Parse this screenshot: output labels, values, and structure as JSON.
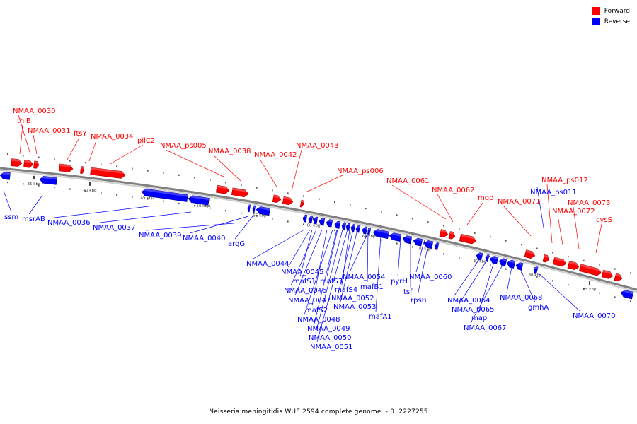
{
  "legend": {
    "forward_label": "Forward",
    "reverse_label": "Reverse",
    "forward_color": "#ff0000",
    "reverse_color": "#0000ff"
  },
  "caption": "Neisseria meningitidis WUE 2594 complete genome. - 0..2227255",
  "backbone_color": "#808080",
  "ticks": [
    {
      "pos_kbp": 35,
      "label": "35 kbp"
    },
    {
      "pos_kbp": 40,
      "label": "40 kbp"
    },
    {
      "pos_kbp": 45,
      "label": "45 kbp"
    },
    {
      "pos_kbp": 50,
      "label": "50 kbp"
    },
    {
      "pos_kbp": 55,
      "label": "55 kbp"
    },
    {
      "pos_kbp": 60,
      "label": "60 kbp"
    },
    {
      "pos_kbp": 65,
      "label": "65 kbp"
    },
    {
      "pos_kbp": 70,
      "label": "70 kbp"
    },
    {
      "pos_kbp": 75,
      "label": "75 kbp"
    },
    {
      "pos_kbp": 80,
      "label": "80 kbp"
    },
    {
      "pos_kbp": 85,
      "label": "85 kbp"
    }
  ],
  "forward_genes": [
    {
      "name": "thiB"
    },
    {
      "name": "NMAA_0030"
    },
    {
      "name": "NMAA_0031"
    },
    {
      "name": "ftsY"
    },
    {
      "name": "NMAA_0034"
    },
    {
      "name": "pilC2"
    },
    {
      "name": "NMAA_ps005"
    },
    {
      "name": "NMAA_0038"
    },
    {
      "name": "NMAA_0042"
    },
    {
      "name": "NMAA_0043"
    },
    {
      "name": "NMAA_ps006"
    },
    {
      "name": "NMAA_0061"
    },
    {
      "name": "NMAA_0062"
    },
    {
      "name": "mqo"
    },
    {
      "name": "NMAA_0071"
    },
    {
      "name": "NMAA_ps012"
    },
    {
      "name": "NMAA_0072"
    },
    {
      "name": "NMAA_0073"
    },
    {
      "name": "cysS"
    }
  ],
  "reverse_genes": [
    {
      "name": "ssm"
    },
    {
      "name": "msrAB"
    },
    {
      "name": "NMAA_0036"
    },
    {
      "name": "NMAA_0037"
    },
    {
      "name": "NMAA_0039"
    },
    {
      "name": "NMAA_0040"
    },
    {
      "name": "argG"
    },
    {
      "name": "NMAA_0044"
    },
    {
      "name": "NMAA_0045"
    },
    {
      "name": "mafS1"
    },
    {
      "name": "NMAA_0046"
    },
    {
      "name": "NMAA_0047"
    },
    {
      "name": "mafS2"
    },
    {
      "name": "NMAA_0048"
    },
    {
      "name": "NMAA_0049"
    },
    {
      "name": "NMAA_0050"
    },
    {
      "name": "NMAA_0051"
    },
    {
      "name": "mafS3"
    },
    {
      "name": "mafS4"
    },
    {
      "name": "NMAA_0052"
    },
    {
      "name": "NMAA_0053"
    },
    {
      "name": "NMAA_0054"
    },
    {
      "name": "mafB1"
    },
    {
      "name": "mafA1"
    },
    {
      "name": "pyrH"
    },
    {
      "name": "tsf"
    },
    {
      "name": "NMAA_0060"
    },
    {
      "name": "rpsB"
    },
    {
      "name": "NMAA_ps011"
    },
    {
      "name": "NMAA_0064"
    },
    {
      "name": "NMAA_0065"
    },
    {
      "name": "map"
    },
    {
      "name": "NMAA_0067"
    },
    {
      "name": "NMAA_0068"
    },
    {
      "name": "gmhA"
    },
    {
      "name": "NMAA_0070"
    }
  ]
}
